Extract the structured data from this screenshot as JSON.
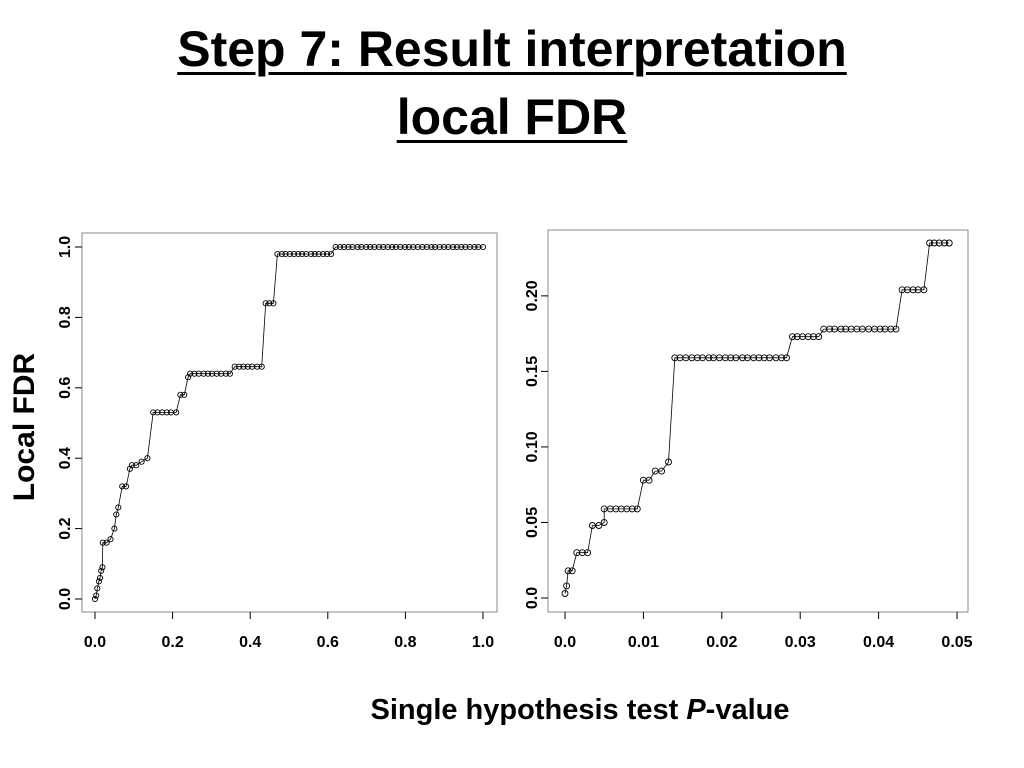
{
  "slide": {
    "title_line1": "Step 7: Result interpretation",
    "title_line2": "local FDR",
    "ylabel": "Local FDR",
    "xlabel_pre": "Single hypothesis test ",
    "xlabel_italic": "P",
    "xlabel_post": "-value"
  },
  "chart_data": [
    {
      "type": "scatter",
      "connected": true,
      "marker": "open-circle",
      "xlim": [
        0,
        1.0
      ],
      "ylim": [
        0,
        1.0
      ],
      "xticks": [
        "0.0",
        "0.2",
        "0.4",
        "0.6",
        "0.8",
        "1.0"
      ],
      "yticks": [
        "0.0",
        "0.2",
        "0.4",
        "0.6",
        "0.8",
        "1.0"
      ],
      "steps": [
        [
          0.0,
          0.0
        ],
        [
          0.003,
          0.01
        ],
        [
          0.006,
          0.03
        ],
        [
          0.01,
          0.05
        ],
        [
          0.013,
          0.06
        ],
        [
          0.016,
          0.08
        ],
        [
          0.019,
          0.09
        ],
        [
          0.02,
          0.16
        ],
        [
          0.04,
          0.17
        ],
        [
          0.05,
          0.2
        ],
        [
          0.055,
          0.24
        ],
        [
          0.06,
          0.26
        ],
        [
          0.07,
          0.32
        ],
        [
          0.09,
          0.37
        ],
        [
          0.095,
          0.38
        ],
        [
          0.12,
          0.39
        ],
        [
          0.135,
          0.4
        ],
        [
          0.15,
          0.53
        ],
        [
          0.22,
          0.58
        ],
        [
          0.24,
          0.63
        ],
        [
          0.245,
          0.64
        ],
        [
          0.36,
          0.66
        ],
        [
          0.44,
          0.84
        ],
        [
          0.47,
          0.98
        ],
        [
          0.62,
          1.0
        ],
        [
          1.0,
          1.0
        ]
      ]
    },
    {
      "type": "scatter",
      "connected": true,
      "marker": "open-circle",
      "xlim": [
        0,
        0.05
      ],
      "ylim": [
        0,
        0.235
      ],
      "xticks": [
        "0.0",
        "0.01",
        "0.02",
        "0.03",
        "0.04",
        "0.05"
      ],
      "yticks": [
        "0.0",
        "0.05",
        "0.10",
        "0.15",
        "0.20"
      ],
      "steps": [
        [
          0.0,
          0.003
        ],
        [
          0.0002,
          0.008
        ],
        [
          0.0004,
          0.018
        ],
        [
          0.0015,
          0.03
        ],
        [
          0.0035,
          0.048
        ],
        [
          0.005,
          0.05
        ],
        [
          0.005,
          0.059
        ],
        [
          0.01,
          0.078
        ],
        [
          0.0115,
          0.084
        ],
        [
          0.0132,
          0.09
        ],
        [
          0.014,
          0.159
        ],
        [
          0.029,
          0.173
        ],
        [
          0.033,
          0.178
        ],
        [
          0.043,
          0.204
        ],
        [
          0.0465,
          0.235
        ],
        [
          0.049,
          0.235
        ]
      ]
    }
  ]
}
